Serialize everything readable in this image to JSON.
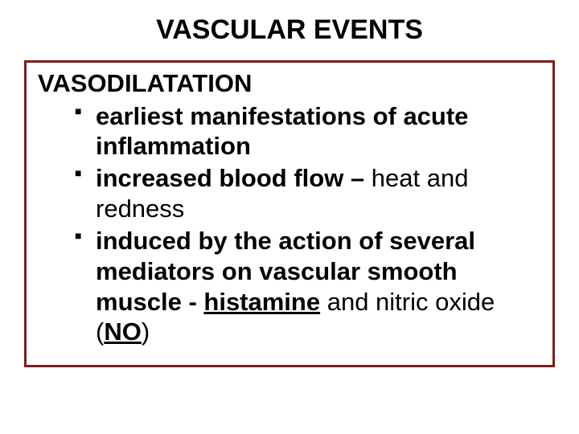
{
  "slide": {
    "title": "VASCULAR EVENTS",
    "title_fontsize": 34,
    "title_color": "#000000",
    "section_heading": "VASODILATATION",
    "body_fontsize": 31,
    "body_color": "#000000",
    "box_border_color": "#7a1e1e",
    "box_border_width": 3,
    "background_color": "#ffffff",
    "bullets": [
      {
        "segments": [
          {
            "text": "earliest manifestations of acute inflammation",
            "bold": true
          }
        ]
      },
      {
        "segments": [
          {
            "text": "increased blood flow – ",
            "bold": true
          },
          {
            "text": "heat and redness",
            "bold": false
          }
        ]
      },
      {
        "segments": [
          {
            "text": "induced by the action of several mediators on vascular smooth muscle - ",
            "bold": true
          },
          {
            "text": "histamine",
            "bold": true,
            "underline": true
          },
          {
            "text": " and nitric oxide (",
            "bold": false
          },
          {
            "text": "NO",
            "bold": true,
            "underline": true
          },
          {
            "text": ")",
            "bold": false
          }
        ]
      }
    ]
  }
}
